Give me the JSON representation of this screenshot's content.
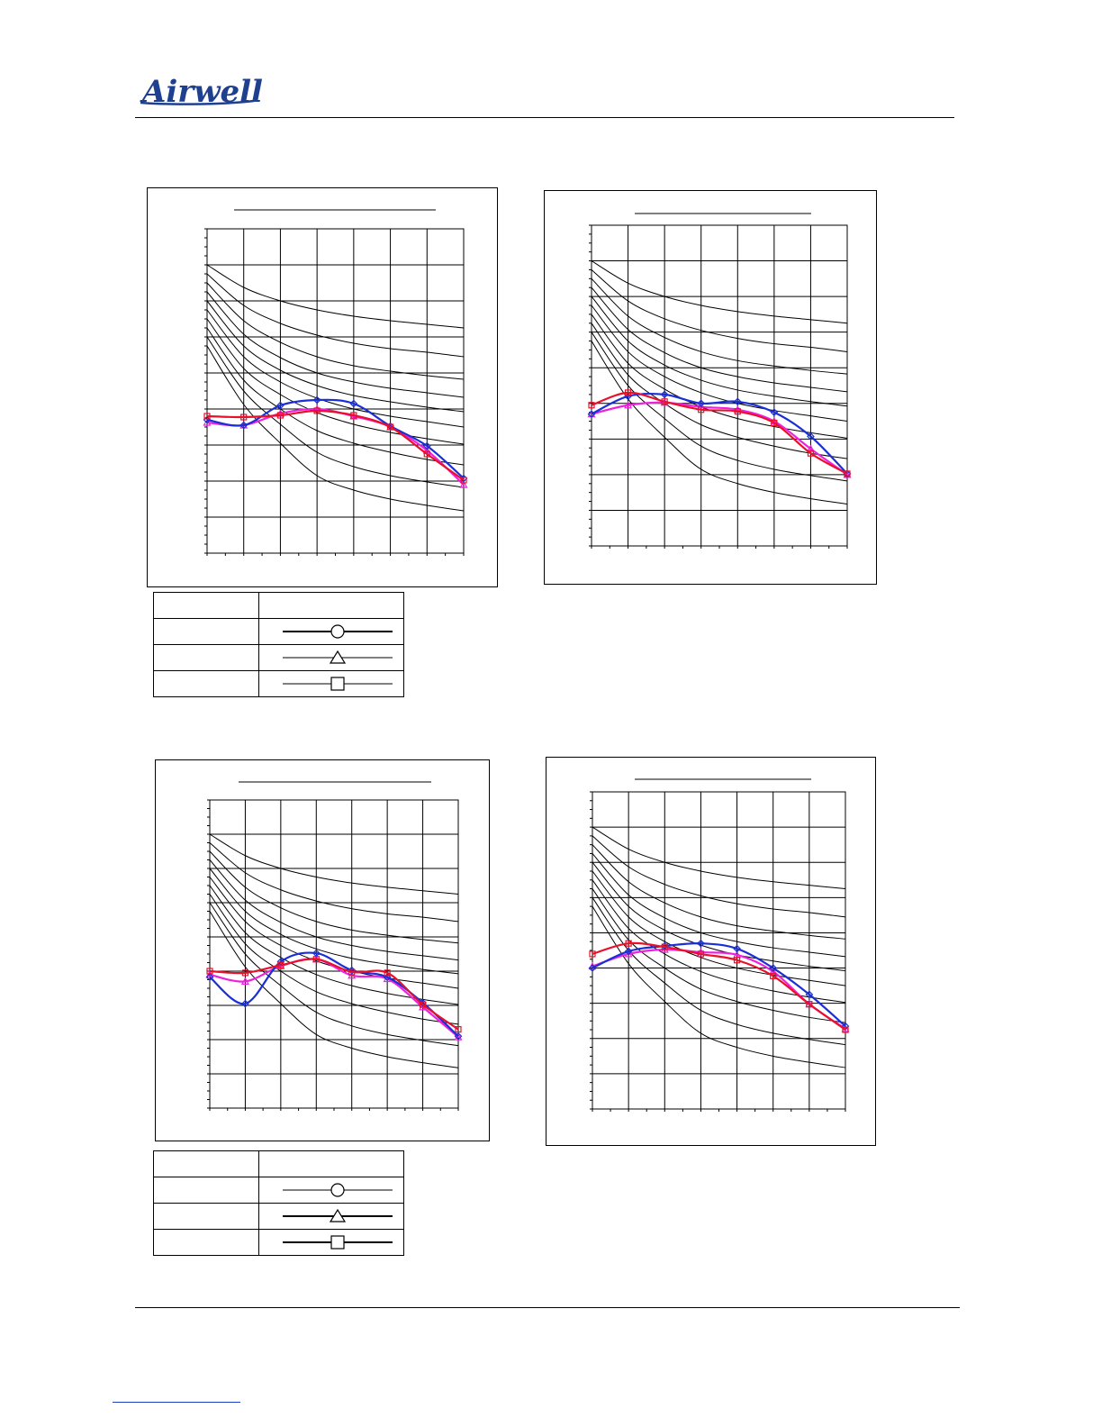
{
  "brand": {
    "name": "Airwell",
    "color": "#1f3f8f"
  },
  "colors": {
    "series_a": "#1a2fd6",
    "series_b": "#e8102a",
    "series_c": "#ee22dd",
    "grid": "#000000"
  },
  "legends": [
    {
      "header": [
        "",
        ""
      ],
      "rows": [
        {
          "label": "",
          "marker": "circle",
          "line": "thick"
        },
        {
          "label": "",
          "marker": "triangle",
          "line": "thin"
        },
        {
          "label": "",
          "marker": "square",
          "line": "thin"
        }
      ]
    },
    {
      "header": [
        "",
        ""
      ],
      "rows": [
        {
          "label": "",
          "marker": "circle",
          "line": "thin"
        },
        {
          "label": "",
          "marker": "triangle",
          "line": "thick"
        },
        {
          "label": "",
          "marker": "square",
          "line": "thick"
        }
      ]
    }
  ],
  "chart_data": [
    {
      "type": "line",
      "title": "",
      "x": [
        0,
        1,
        2,
        3,
        4,
        5,
        6,
        7
      ],
      "ylim": [
        0,
        36
      ],
      "grid": true,
      "background_curves": [
        [
          32,
          29.5,
          28,
          27,
          26.3,
          25.8,
          25.4,
          25
        ],
        [
          31,
          27.5,
          25.5,
          24.2,
          23.3,
          22.7,
          22.3,
          21.8
        ],
        [
          30,
          25.8,
          23.4,
          21.8,
          20.8,
          20.2,
          19.7,
          19.3
        ],
        [
          29,
          24.3,
          21.7,
          20,
          19,
          18.3,
          17.8,
          17.3
        ],
        [
          28,
          23,
          20.3,
          18.6,
          17.5,
          16.8,
          16.2,
          15.7
        ],
        [
          27,
          21.8,
          19,
          17.2,
          16,
          15.2,
          14.6,
          14
        ],
        [
          26,
          20.5,
          17.6,
          15.6,
          14.3,
          13.4,
          12.7,
          12.1
        ],
        [
          25,
          19.2,
          16,
          13.6,
          12.2,
          11.2,
          10.4,
          9.8
        ],
        [
          24,
          18,
          14.3,
          11.2,
          9.6,
          8.6,
          7.9,
          7.3
        ],
        [
          23,
          16.5,
          12.2,
          8.6,
          7,
          6,
          5.3,
          4.7
        ]
      ],
      "series": [
        {
          "values": [
            14.8,
            14.2,
            16.4,
            17,
            16.6,
            14.1,
            11.9,
            8.3
          ]
        },
        {
          "values": [
            15.2,
            15.1,
            15.3,
            15.8,
            15.3,
            14,
            11,
            8.1
          ]
        },
        {
          "values": [
            14.5,
            14.2,
            15.5,
            16,
            15.2,
            14,
            11.4,
            7.6
          ]
        }
      ]
    },
    {
      "type": "line",
      "title": "",
      "x": [
        0,
        1,
        2,
        3,
        4,
        5,
        6,
        7
      ],
      "ylim": [
        0,
        36
      ],
      "grid": true,
      "background_curves": [
        [
          32,
          29.5,
          28,
          27,
          26.3,
          25.8,
          25.4,
          25
        ],
        [
          31,
          27.5,
          25.5,
          24.2,
          23.3,
          22.7,
          22.3,
          21.8
        ],
        [
          30,
          25.8,
          23.4,
          21.8,
          20.8,
          20.2,
          19.7,
          19.3
        ],
        [
          29,
          24.3,
          21.7,
          20,
          19,
          18.3,
          17.8,
          17.3
        ],
        [
          28,
          23,
          20.3,
          18.6,
          17.5,
          16.8,
          16.2,
          15.7
        ],
        [
          27,
          21.8,
          19,
          17.2,
          16,
          15.2,
          14.6,
          14
        ],
        [
          26,
          20.5,
          17.6,
          15.6,
          14.3,
          13.4,
          12.7,
          12.1
        ],
        [
          25,
          19.2,
          16,
          13.6,
          12.2,
          11.2,
          10.4,
          9.8
        ],
        [
          24,
          18,
          14.3,
          11.2,
          9.6,
          8.6,
          7.9,
          7.3
        ],
        [
          23,
          16.5,
          12.2,
          8.6,
          7,
          6,
          5.3,
          4.7
        ]
      ],
      "series": [
        {
          "values": [
            14.8,
            16.8,
            17,
            16,
            16.2,
            15,
            12.3,
            8.1
          ]
        },
        {
          "values": [
            15.8,
            17.2,
            16.2,
            15.3,
            15.1,
            13.8,
            10.4,
            8.1
          ]
        },
        {
          "values": [
            14.8,
            15.8,
            16.1,
            15.6,
            15.3,
            14,
            10.9,
            8
          ]
        }
      ]
    },
    {
      "type": "line",
      "title": "",
      "x": [
        0,
        1,
        2,
        3,
        4,
        5,
        6,
        7
      ],
      "ylim": [
        0,
        36
      ],
      "grid": true,
      "background_curves": [
        [
          32,
          29.5,
          28,
          27,
          26.3,
          25.8,
          25.4,
          25
        ],
        [
          31,
          27.5,
          25.5,
          24.2,
          23.3,
          22.7,
          22.3,
          21.8
        ],
        [
          30,
          25.8,
          23.4,
          21.8,
          20.8,
          20.2,
          19.7,
          19.3
        ],
        [
          29,
          24.3,
          21.7,
          20,
          19,
          18.3,
          17.8,
          17.3
        ],
        [
          28,
          23,
          20.3,
          18.6,
          17.5,
          16.8,
          16.2,
          15.7
        ],
        [
          27,
          21.8,
          19,
          17.2,
          16,
          15.2,
          14.6,
          14
        ],
        [
          26,
          20.5,
          17.6,
          15.6,
          14.3,
          13.4,
          12.7,
          12.1
        ],
        [
          25,
          19.2,
          16,
          13.6,
          12.2,
          11.2,
          10.4,
          9.8
        ],
        [
          24,
          18,
          14.3,
          11.2,
          9.6,
          8.6,
          7.9,
          7.3
        ],
        [
          23,
          16.5,
          12.2,
          8.6,
          7,
          6,
          5.3,
          4.7
        ]
      ],
      "series": [
        {
          "values": [
            15.3,
            12.2,
            17.1,
            18.1,
            16.1,
            15.3,
            12.3,
            8.4
          ]
        },
        {
          "values": [
            16,
            15.8,
            16.7,
            17.4,
            15.9,
            15.8,
            12.1,
            9.2
          ]
        },
        {
          "values": [
            15.6,
            14.8,
            16.6,
            17.4,
            15.5,
            15.1,
            11.8,
            8.3
          ]
        }
      ]
    },
    {
      "type": "line",
      "title": "",
      "x": [
        0,
        1,
        2,
        3,
        4,
        5,
        6,
        7
      ],
      "ylim": [
        0,
        36
      ],
      "grid": true,
      "background_curves": [
        [
          32,
          29.5,
          28,
          27,
          26.3,
          25.8,
          25.4,
          25
        ],
        [
          31,
          27.5,
          25.5,
          24.2,
          23.3,
          22.7,
          22.3,
          21.8
        ],
        [
          30,
          25.8,
          23.4,
          21.8,
          20.8,
          20.2,
          19.7,
          19.3
        ],
        [
          29,
          24.3,
          21.7,
          20,
          19,
          18.3,
          17.8,
          17.3
        ],
        [
          28,
          23,
          20.3,
          18.6,
          17.5,
          16.8,
          16.2,
          15.7
        ],
        [
          27,
          21.8,
          19,
          17.2,
          16,
          15.2,
          14.6,
          14
        ],
        [
          26,
          20.5,
          17.6,
          15.6,
          14.3,
          13.4,
          12.7,
          12.1
        ],
        [
          25,
          19.2,
          16,
          13.6,
          12.2,
          11.2,
          10.4,
          9.8
        ],
        [
          24,
          18,
          14.3,
          11.2,
          9.6,
          8.6,
          7.9,
          7.3
        ],
        [
          23,
          16.5,
          12.2,
          8.6,
          7,
          6,
          5.3,
          4.7
        ]
      ],
      "series": [
        {
          "values": [
            16,
            17.9,
            18.5,
            18.8,
            18.2,
            16,
            13,
            9.4
          ]
        },
        {
          "values": [
            17.6,
            18.8,
            18.4,
            17.6,
            16.9,
            15.1,
            11.9,
            9
          ]
        },
        {
          "values": [
            16.2,
            17.6,
            18.1,
            17.8,
            17.5,
            15.6,
            11.9,
            9.1
          ]
        }
      ]
    }
  ]
}
